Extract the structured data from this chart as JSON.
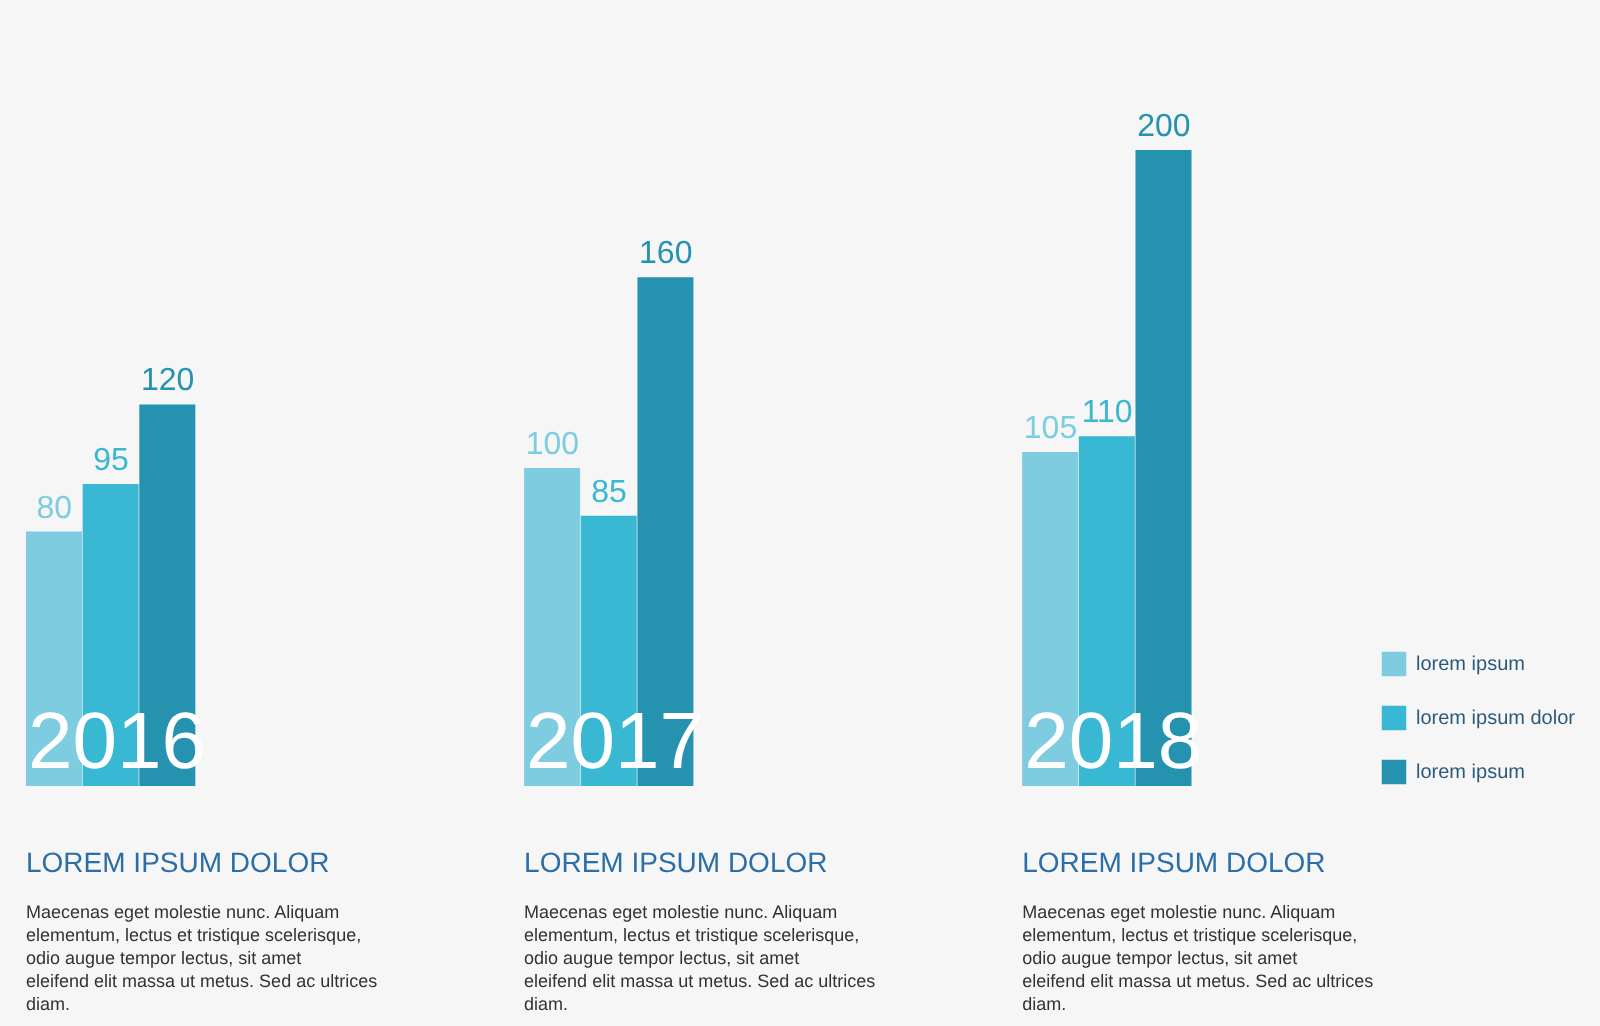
{
  "chart_data": {
    "type": "bar",
    "categories": [
      "2016",
      "2017",
      "2018"
    ],
    "series": [
      {
        "name": "lorem ipsum",
        "color": "#7ecce0",
        "values": [
          80,
          100,
          105
        ]
      },
      {
        "name": "lorem ipsum dolor",
        "color": "#38b8d2",
        "values": [
          95,
          85,
          110
        ]
      },
      {
        "name": "lorem ipsum",
        "color": "#2592b0",
        "values": [
          120,
          160,
          200
        ]
      }
    ],
    "data_labels": true,
    "legend": "bottom right",
    "annotations": [
      "LOREM IPSUM DOLOR",
      "Maecenas eget molestie nunc. Aliquam\nelementum, lectus et tristique scelerisque,\nodio augue tempor lectus, sit amet\neleifend elit massa ut metus. Sed ac ultrices\ndiam.",
      "LOREM IPSUM DOLOR",
      "Maecenas eget molestie nunc. Aliquam\nelementum, lectus et tristique scelerisque,\nodio augue tempor lectus, sit amet\neleifend elit massa ut metus. Sed ac ultrices\ndiam.",
      "LOREM IPSUM DOLOR",
      "Maecenas eget molestie nunc. Aliquam\nelementum, lectus et tristique scelerisque,\nodio augue tempor lectus, sit amet\neleifend elit massa ut metus. Sed ac ultrices\ndiam."
    ]
  }
}
